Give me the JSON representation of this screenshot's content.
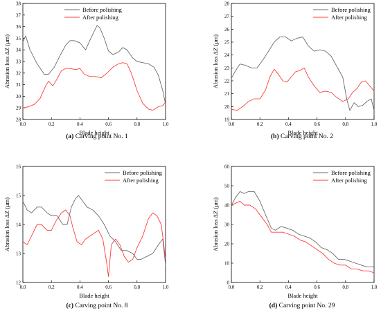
{
  "figure": {
    "colors": {
      "before": "#6b6b6b",
      "after": "#ff3b3b",
      "axis": "#000000"
    }
  },
  "chart_data": [
    {
      "type": "line",
      "caption_tag": "(a)",
      "caption_text": "Carving point No. 1",
      "xlabel": "Blade height",
      "ylabel": "Abrasion loss ΔZ (μm)",
      "xlim": [
        0,
        1.0
      ],
      "ylim": [
        28,
        38
      ],
      "x_ticks": [
        "0.0",
        "0.2",
        "0.4",
        "0.6",
        "0.8",
        "1.0"
      ],
      "y_ticks": [
        "28",
        "29",
        "30",
        "31",
        "32",
        "33",
        "34",
        "35",
        "36",
        "37",
        "38"
      ],
      "legend_position": "top-left",
      "series": [
        {
          "name": "Before polishing",
          "color": "#6b6b6b",
          "x": [
            0,
            0.02,
            0.05,
            0.1,
            0.15,
            0.18,
            0.22,
            0.26,
            0.3,
            0.33,
            0.36,
            0.4,
            0.44,
            0.48,
            0.52,
            0.54,
            0.57,
            0.6,
            0.63,
            0.67,
            0.7,
            0.73,
            0.77,
            0.8,
            0.84,
            0.88,
            0.92,
            0.95,
            0.98,
            1.0
          ],
          "y": [
            34.7,
            35.2,
            34.0,
            32.8,
            31.9,
            31.9,
            32.5,
            33.5,
            34.4,
            34.8,
            34.8,
            34.6,
            34.0,
            35.1,
            36.1,
            35.9,
            35.0,
            33.9,
            33.6,
            33.8,
            34.2,
            34.0,
            33.3,
            33.0,
            32.9,
            32.8,
            32.5,
            31.8,
            30.5,
            29.3
          ]
        },
        {
          "name": "After polishing",
          "color": "#ff3b3b",
          "x": [
            0,
            0.04,
            0.08,
            0.12,
            0.16,
            0.18,
            0.21,
            0.24,
            0.27,
            0.3,
            0.33,
            0.37,
            0.4,
            0.43,
            0.47,
            0.51,
            0.55,
            0.59,
            0.63,
            0.67,
            0.7,
            0.73,
            0.76,
            0.8,
            0.84,
            0.88,
            0.91,
            0.95,
            0.98,
            1.0
          ],
          "y": [
            29.0,
            29.1,
            29.3,
            29.8,
            30.9,
            31.3,
            30.9,
            31.5,
            32.2,
            32.4,
            32.4,
            32.3,
            32.4,
            31.9,
            31.7,
            31.7,
            31.6,
            32.0,
            32.5,
            32.8,
            32.9,
            32.8,
            32.0,
            30.5,
            29.4,
            28.9,
            28.8,
            29.1,
            29.2,
            29.5
          ]
        }
      ]
    },
    {
      "type": "line",
      "caption_tag": "(b)",
      "caption_text": "Carving point No. 2",
      "xlabel": "Blade height",
      "ylabel": "Abrasion loss ΔZ (μm)",
      "xlim": [
        0,
        1.0
      ],
      "ylim": [
        19,
        28
      ],
      "x_ticks": [
        "0.0",
        "0.2",
        "0.4",
        "0.6",
        "0.8",
        "1.0"
      ],
      "y_ticks": [
        "19",
        "20",
        "21",
        "22",
        "23",
        "24",
        "25",
        "26",
        "27",
        "28"
      ],
      "legend_position": "top-right",
      "series": [
        {
          "name": "Before polishing",
          "color": "#6b6b6b",
          "x": [
            0,
            0.03,
            0.06,
            0.1,
            0.14,
            0.18,
            0.22,
            0.26,
            0.3,
            0.34,
            0.38,
            0.42,
            0.46,
            0.5,
            0.54,
            0.58,
            0.62,
            0.66,
            0.7,
            0.74,
            0.78,
            0.81,
            0.83,
            0.86,
            0.89,
            0.92,
            0.95,
            0.98,
            1.0
          ],
          "y": [
            22.2,
            22.8,
            23.3,
            23.2,
            23.0,
            23.0,
            23.6,
            24.3,
            25.0,
            25.4,
            25.4,
            25.1,
            25.3,
            25.4,
            24.7,
            24.3,
            24.4,
            24.3,
            23.9,
            23.1,
            22.3,
            20.5,
            19.7,
            20.3,
            20.0,
            20.1,
            20.4,
            20.6,
            19.7
          ]
        },
        {
          "name": "After polishing",
          "color": "#ff3b3b",
          "x": [
            0,
            0.04,
            0.08,
            0.12,
            0.16,
            0.2,
            0.24,
            0.27,
            0.3,
            0.33,
            0.36,
            0.39,
            0.42,
            0.45,
            0.48,
            0.51,
            0.54,
            0.58,
            0.62,
            0.66,
            0.7,
            0.74,
            0.78,
            0.82,
            0.85,
            0.88,
            0.91,
            0.94,
            0.97,
            1.0
          ],
          "y": [
            19.8,
            19.7,
            20.0,
            20.4,
            20.6,
            20.6,
            21.3,
            22.3,
            22.9,
            22.5,
            22.0,
            21.9,
            22.3,
            22.7,
            22.8,
            23.0,
            22.3,
            21.6,
            21.1,
            21.2,
            21.1,
            20.7,
            20.4,
            20.6,
            21.1,
            21.4,
            21.9,
            22.0,
            21.6,
            21.2
          ]
        }
      ]
    },
    {
      "type": "line",
      "caption_tag": "(c)",
      "caption_text": "Carving point No. 8",
      "xlabel": "Blade height",
      "ylabel": "Abrasion loss ΔZ (μm)",
      "xlim": [
        0,
        1.0
      ],
      "ylim": [
        12,
        16
      ],
      "x_ticks": [
        "0.0",
        "0.2",
        "0.4",
        "0.6",
        "0.8",
        "1.0"
      ],
      "y_ticks": [
        "12",
        "13",
        "14",
        "15",
        "16"
      ],
      "legend_position": "top-right",
      "series": [
        {
          "name": "Before polishing",
          "color": "#6b6b6b",
          "x": [
            0,
            0.03,
            0.06,
            0.1,
            0.13,
            0.17,
            0.2,
            0.24,
            0.28,
            0.31,
            0.34,
            0.37,
            0.39,
            0.42,
            0.45,
            0.49,
            0.53,
            0.57,
            0.61,
            0.65,
            0.69,
            0.73,
            0.77,
            0.8,
            0.83,
            0.87,
            0.91,
            0.95,
            0.98,
            1.0
          ],
          "y": [
            14.8,
            14.5,
            14.4,
            14.6,
            14.6,
            14.4,
            14.3,
            14.3,
            14.0,
            14.0,
            14.6,
            14.9,
            15.0,
            14.8,
            14.6,
            14.5,
            14.3,
            14.0,
            13.6,
            13.4,
            13.1,
            13.1,
            13.0,
            12.8,
            12.8,
            12.9,
            13.0,
            13.3,
            13.5,
            12.6
          ]
        },
        {
          "name": "After polishing",
          "color": "#ff3b3b",
          "x": [
            0,
            0.03,
            0.06,
            0.1,
            0.13,
            0.17,
            0.2,
            0.23,
            0.27,
            0.3,
            0.33,
            0.35,
            0.38,
            0.41,
            0.44,
            0.47,
            0.5,
            0.53,
            0.56,
            0.59,
            0.6,
            0.62,
            0.65,
            0.68,
            0.71,
            0.74,
            0.77,
            0.8,
            0.84,
            0.88,
            0.91,
            0.94,
            0.97,
            1.0
          ],
          "y": [
            13.4,
            13.3,
            13.6,
            14.0,
            14.0,
            13.8,
            13.8,
            14.1,
            14.4,
            14.5,
            14.3,
            13.9,
            13.4,
            13.3,
            13.5,
            13.6,
            13.7,
            13.8,
            13.5,
            12.6,
            12.2,
            13.3,
            13.5,
            13.3,
            12.9,
            12.7,
            12.8,
            13.2,
            13.6,
            14.2,
            14.4,
            14.3,
            14.0,
            12.8
          ]
        }
      ]
    },
    {
      "type": "line",
      "caption_tag": "(d)",
      "caption_text": "Carving point No. 29",
      "xlabel": "Blade height",
      "ylabel": "Abrasion loss ΔZ (μm)",
      "xlim": [
        0,
        1.0
      ],
      "ylim": [
        0,
        60
      ],
      "x_ticks": [
        "0.0",
        "0.2",
        "0.4",
        "0.6",
        "0.8",
        "1.0"
      ],
      "y_ticks": [
        "0",
        "10",
        "20",
        "30",
        "40",
        "50",
        "60"
      ],
      "legend_position": "top-right",
      "series": [
        {
          "name": "Before polishing",
          "color": "#6b6b6b",
          "x": [
            0,
            0.03,
            0.06,
            0.09,
            0.12,
            0.16,
            0.2,
            0.24,
            0.28,
            0.31,
            0.35,
            0.39,
            0.43,
            0.47,
            0.51,
            0.55,
            0.59,
            0.63,
            0.67,
            0.71,
            0.75,
            0.79,
            0.83,
            0.87,
            0.91,
            0.95,
            1.0
          ],
          "y": [
            40,
            44,
            47,
            46,
            47,
            47,
            42,
            35,
            28,
            27,
            29,
            28,
            27,
            25,
            24,
            23,
            21,
            18,
            17,
            15,
            12,
            12,
            11,
            10,
            9,
            8,
            8
          ]
        },
        {
          "name": "After polishing",
          "color": "#ff3b3b",
          "x": [
            0,
            0.03,
            0.06,
            0.09,
            0.13,
            0.17,
            0.21,
            0.25,
            0.28,
            0.32,
            0.36,
            0.4,
            0.44,
            0.48,
            0.52,
            0.56,
            0.6,
            0.64,
            0.68,
            0.72,
            0.76,
            0.8,
            0.84,
            0.88,
            0.92,
            0.96,
            1.0
          ],
          "y": [
            40,
            41,
            42,
            40,
            40,
            38,
            34,
            30,
            26,
            26,
            26,
            25,
            24,
            22,
            21,
            19,
            17,
            15,
            12,
            10,
            9,
            9,
            7,
            7,
            6,
            6,
            5
          ]
        }
      ]
    }
  ]
}
